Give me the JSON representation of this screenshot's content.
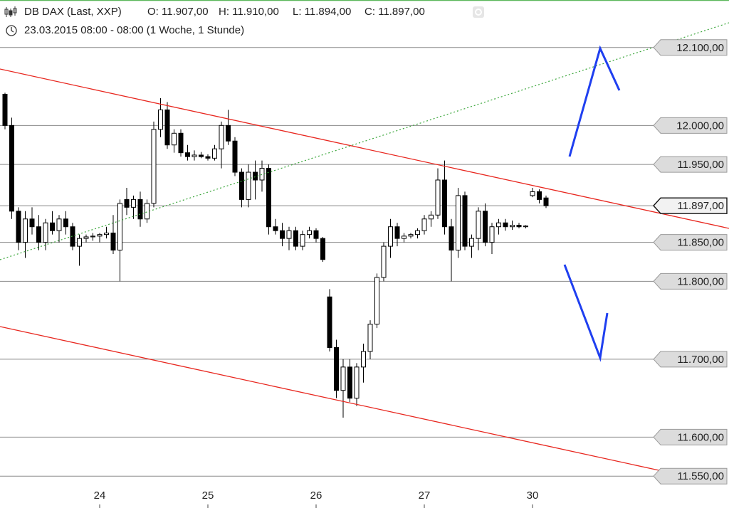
{
  "chart_data": {
    "type": "candlestick",
    "title": "DB DAX (Last, XXP)",
    "quote_labels": [
      "O: 11.907,00",
      "H: 11.910,00",
      "L: 11.894,00",
      "C: 11.897,00"
    ],
    "subtitle": "23.03.2015 08:00 - 08:00 (1 Woche, 1 Stunde)",
    "categories": [
      null,
      null,
      null,
      null,
      null,
      null,
      null,
      null,
      null,
      null,
      null,
      null,
      null,
      null,
      "24",
      null,
      null,
      null,
      null,
      null,
      null,
      null,
      null,
      null,
      null,
      null,
      null,
      null,
      null,
      null,
      "25",
      null,
      null,
      null,
      null,
      null,
      null,
      null,
      null,
      null,
      null,
      null,
      null,
      null,
      null,
      null,
      "26",
      null,
      null,
      null,
      null,
      null,
      null,
      null,
      null,
      null,
      null,
      null,
      null,
      null,
      null,
      null,
      "27",
      null,
      null,
      null,
      null,
      null,
      null,
      null,
      null,
      null,
      null,
      null,
      null,
      null,
      null,
      null,
      "30",
      null,
      null
    ],
    "open": [
      12040,
      12000,
      11890,
      11850,
      11880,
      11870,
      11850,
      11875,
      11865,
      11880,
      11870,
      11845,
      11855,
      11857,
      11858,
      11860,
      11862,
      11840,
      11905,
      11895,
      11905,
      11880,
      11900,
      11995,
      12020,
      11975,
      11990,
      11965,
      11960,
      11962,
      11960,
      11958,
      11970,
      12000,
      11980,
      11940,
      11905,
      11940,
      11930,
      11945,
      11870,
      11865,
      11855,
      11865,
      11845,
      11860,
      11865,
      11855,
      11780,
      11715,
      11660,
      11690,
      11650,
      11690,
      11710,
      11745,
      11805,
      11845,
      11870,
      11855,
      11858,
      11860,
      11865,
      11880,
      11885,
      11930,
      11870,
      11840,
      11910,
      11845,
      11855,
      11890,
      11850,
      11870,
      11875,
      11870,
      11872,
      11870,
      11910,
      11915,
      11907
    ],
    "high": [
      12042,
      12010,
      11895,
      11890,
      11895,
      11885,
      11880,
      11890,
      11885,
      11890,
      11875,
      11860,
      11860,
      11862,
      11862,
      11870,
      11885,
      11905,
      11920,
      11910,
      11915,
      11905,
      12005,
      12035,
      12030,
      11995,
      11995,
      11975,
      11968,
      11966,
      11963,
      11975,
      12005,
      12020,
      11985,
      11945,
      11950,
      11955,
      11955,
      11950,
      11880,
      11875,
      11870,
      11870,
      11865,
      11870,
      11868,
      11857,
      11790,
      11725,
      11700,
      11700,
      11695,
      11720,
      11750,
      11810,
      11850,
      11880,
      11875,
      11862,
      11862,
      11868,
      11885,
      11890,
      11945,
      11955,
      11880,
      11920,
      11915,
      11860,
      11895,
      11900,
      11875,
      11880,
      11880,
      11878,
      11875,
      11872,
      11920,
      11918,
      11910
    ],
    "low": [
      11995,
      11880,
      11840,
      11830,
      11860,
      11840,
      11840,
      11860,
      11850,
      11860,
      11840,
      11820,
      11850,
      11852,
      11850,
      11855,
      11835,
      11800,
      11885,
      11880,
      11870,
      11875,
      11895,
      11985,
      11970,
      11965,
      11960,
      11955,
      11955,
      11958,
      11955,
      11955,
      11945,
      11975,
      11935,
      11895,
      11895,
      11905,
      11915,
      11860,
      11860,
      11845,
      11840,
      11840,
      11840,
      11855,
      11850,
      11825,
      11710,
      11650,
      11625,
      11645,
      11640,
      11670,
      11700,
      11740,
      11800,
      11830,
      11845,
      11850,
      11855,
      11855,
      11860,
      11870,
      11880,
      11860,
      11800,
      11830,
      11840,
      11830,
      11840,
      11845,
      11835,
      11860,
      11865,
      11866,
      11868,
      11868,
      11908,
      11900,
      11894
    ],
    "close": [
      12000,
      11890,
      11850,
      11880,
      11870,
      11850,
      11875,
      11865,
      11880,
      11870,
      11845,
      11855,
      11857,
      11858,
      11860,
      11862,
      11840,
      11900,
      11895,
      11905,
      11880,
      11900,
      11995,
      12020,
      11975,
      11990,
      11965,
      11960,
      11962,
      11960,
      11958,
      11970,
      12000,
      11980,
      11940,
      11905,
      11940,
      11930,
      11945,
      11870,
      11865,
      11855,
      11865,
      11845,
      11860,
      11865,
      11855,
      11828,
      11715,
      11660,
      11690,
      11650,
      11690,
      11710,
      11745,
      11805,
      11845,
      11870,
      11855,
      11858,
      11860,
      11865,
      11880,
      11885,
      11930,
      11870,
      11840,
      11910,
      11845,
      11855,
      11890,
      11850,
      11870,
      11875,
      11870,
      11872,
      11870,
      11871,
      11915,
      11905,
      11897
    ],
    "up_color": "#ffffff",
    "down_color": "#000000",
    "ylim": [
      11531,
      12161
    ],
    "yticks": [
      {
        "value": 12100,
        "label": "12.100,00"
      },
      {
        "value": 12000,
        "label": "12.000,00"
      },
      {
        "value": 11950,
        "label": "11.950,00"
      },
      {
        "value": 11897,
        "label": "11.897,00"
      },
      {
        "value": 11850,
        "label": "11.850,00"
      },
      {
        "value": 11800,
        "label": "11.800,00"
      },
      {
        "value": 11700,
        "label": "11.700,00"
      },
      {
        "value": 11600,
        "label": "11.600,00"
      },
      {
        "value": 11550,
        "label": "11.550,00"
      }
    ],
    "grid": true
  }
}
